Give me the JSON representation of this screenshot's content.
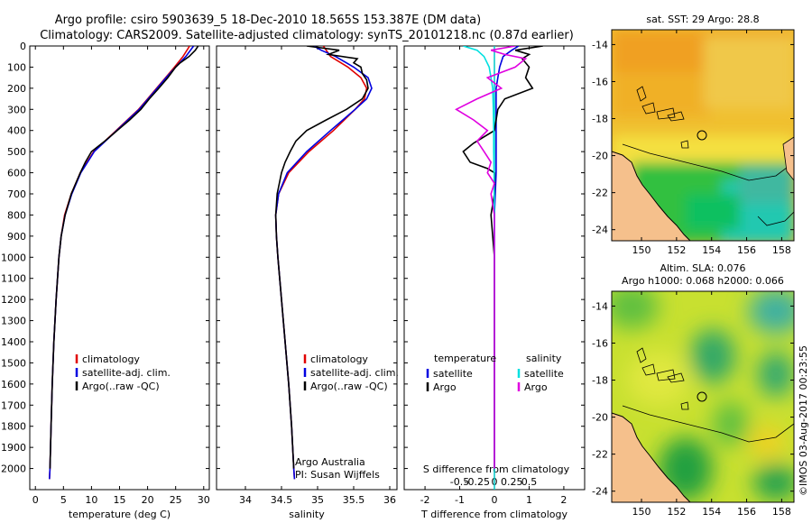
{
  "title": {
    "line1": "Argo profile: csiro 5903639_5 18-Dec-2010 18.565S 153.387E (DM data)",
    "line2": "Climatology: CARS2009. Satellite-adjusted climatology: synTS_20101218.nc (0.87d earlier)"
  },
  "colors": {
    "climatology": "#e00000",
    "satellite": "#0000e0",
    "argo": "#000000",
    "sal_satellite": "#00e0e0",
    "sal_argo": "#e000e0",
    "land": "#f5c08c"
  },
  "side_text": "©IMOS 03-Aug-2017 00:23:55",
  "chart_data": [
    {
      "type": "line",
      "name": "temperature-profile",
      "xlabel": "temperature (deg C)",
      "ylabel": "",
      "xlim": [
        -1,
        31
      ],
      "ylim": [
        2100,
        0
      ],
      "xticks": [
        0,
        5,
        10,
        15,
        20,
        25,
        30
      ],
      "yticks": [
        0,
        100,
        200,
        300,
        400,
        500,
        600,
        700,
        800,
        900,
        1000,
        1100,
        1200,
        1300,
        1400,
        1500,
        1600,
        1700,
        1800,
        1900,
        2000
      ],
      "legend": [
        "climatology",
        "satellite-adj. clim.",
        "Argo(..raw -QC)"
      ],
      "legend_position": "center-left",
      "series": [
        {
          "name": "climatology",
          "color": "#e00000",
          "depth": [
            0,
            50,
            100,
            150,
            200,
            250,
            300,
            400,
            500,
            600,
            700,
            800,
            900,
            1000,
            1200,
            1400,
            1600,
            1800,
            2000,
            2050
          ],
          "values": [
            27.5,
            26.3,
            24.8,
            23.2,
            21.6,
            20.0,
            18.4,
            14.4,
            10.4,
            8.0,
            6.4,
            5.2,
            4.6,
            4.2,
            3.7,
            3.3,
            3.0,
            2.8,
            2.6,
            2.5
          ]
        },
        {
          "name": "satellite-adj. clim.",
          "color": "#0000e0",
          "depth": [
            0,
            50,
            100,
            150,
            200,
            250,
            300,
            400,
            500,
            600,
            700,
            800,
            900,
            1000,
            1200,
            1400,
            1600,
            1800,
            2000,
            2050
          ],
          "values": [
            28.2,
            26.8,
            25.0,
            23.3,
            21.7,
            20.1,
            18.5,
            14.5,
            10.5,
            8.1,
            6.5,
            5.3,
            4.6,
            4.2,
            3.7,
            3.3,
            3.0,
            2.8,
            2.6,
            2.5
          ]
        },
        {
          "name": "Argo(..raw -QC)",
          "color": "#000000",
          "depth": [
            0,
            20,
            50,
            80,
            100,
            150,
            200,
            250,
            300,
            350,
            400,
            450,
            500,
            550,
            600,
            700,
            800,
            900,
            1000,
            1200,
            1400,
            1600,
            1800,
            2000
          ],
          "values": [
            29.0,
            28.5,
            27.4,
            25.8,
            25.0,
            23.6,
            22.0,
            20.3,
            18.8,
            16.8,
            14.6,
            12.4,
            10.0,
            8.9,
            8.0,
            6.4,
            5.3,
            4.6,
            4.2,
            3.7,
            3.3,
            3.0,
            2.8,
            2.6
          ]
        }
      ]
    },
    {
      "type": "line",
      "name": "salinity-profile",
      "xlabel": "salinity",
      "xlim": [
        33.6,
        36.1
      ],
      "ylim": [
        2100,
        0
      ],
      "xticks": [
        34,
        34.5,
        35,
        35.5,
        36
      ],
      "xticklabels": [
        "34",
        "34.5",
        "35",
        "35.5",
        "36"
      ],
      "legend": [
        "climatology",
        "satellite-adj. clim.",
        "Argo(..raw -QC)"
      ],
      "legend_position": "center-right",
      "annotation": [
        "Argo Australia",
        "PI: Susan Wijffels"
      ],
      "series": [
        {
          "name": "climatology",
          "color": "#e00000",
          "depth": [
            0,
            50,
            100,
            150,
            200,
            250,
            300,
            400,
            500,
            600,
            700,
            800,
            900,
            1000,
            1200,
            1400,
            1600,
            1800,
            2000,
            2050
          ],
          "values": [
            35.08,
            35.18,
            35.42,
            35.6,
            35.68,
            35.65,
            35.52,
            35.22,
            34.88,
            34.6,
            34.46,
            34.42,
            34.43,
            34.45,
            34.5,
            34.55,
            34.6,
            34.64,
            34.67,
            34.68
          ]
        },
        {
          "name": "satellite-adj. clim.",
          "color": "#0000e0",
          "depth": [
            0,
            20,
            50,
            100,
            150,
            200,
            250,
            300,
            400,
            500,
            600,
            700,
            800,
            900,
            1000,
            1200,
            1400,
            1600,
            1800,
            2000,
            2050
          ],
          "values": [
            34.95,
            35.05,
            35.25,
            35.5,
            35.7,
            35.75,
            35.68,
            35.52,
            35.18,
            34.85,
            34.58,
            34.46,
            34.42,
            34.43,
            34.45,
            34.5,
            34.55,
            34.6,
            34.64,
            34.67,
            34.68
          ]
        },
        {
          "name": "Argo(..raw -QC)",
          "color": "#000000",
          "depth": [
            0,
            20,
            40,
            60,
            80,
            100,
            130,
            160,
            200,
            250,
            300,
            350,
            400,
            450,
            500,
            550,
            600,
            700,
            800,
            900,
            1000,
            1200,
            1400,
            1600,
            1800,
            2000
          ],
          "values": [
            34.85,
            35.3,
            35.15,
            35.55,
            35.5,
            35.6,
            35.62,
            35.68,
            35.7,
            35.62,
            35.4,
            35.12,
            34.85,
            34.7,
            34.62,
            34.55,
            34.5,
            34.44,
            34.42,
            34.43,
            34.45,
            34.5,
            34.55,
            34.6,
            34.64,
            34.67
          ]
        }
      ]
    },
    {
      "type": "line",
      "name": "difference-profile",
      "xlabel": "T difference from climatology",
      "xlabel2": "S difference from climatology",
      "xlim": [
        -2.6,
        2.6
      ],
      "ylim": [
        2100,
        0
      ],
      "xticks": [
        -2,
        -1,
        0,
        1,
        2
      ],
      "xticklabels": [
        "-2",
        "-1",
        "0",
        "1",
        "2"
      ],
      "xticks2": [
        -1,
        -0.5,
        0,
        0.5,
        1
      ],
      "xticklabels2": [
        "-0.5",
        "-0.25",
        "0",
        "0.25",
        "0.5"
      ],
      "legend_temperature_title": "temperature",
      "legend_salinity_title": "salinity",
      "legend_temperature": [
        "satellite",
        "Argo"
      ],
      "legend_salinity": [
        "satellite",
        "Argo"
      ],
      "series": [
        {
          "name": "T satellite",
          "color": "#0000e0",
          "depth": [
            0,
            20,
            50,
            100,
            150,
            200,
            300,
            400,
            500,
            600,
            800,
            1000,
            1500,
            2000
          ],
          "values": [
            0.7,
            0.5,
            0.25,
            0.15,
            0.1,
            0.05,
            0.05,
            0.05,
            0.05,
            0.05,
            0.0,
            0.0,
            0.0,
            0.0
          ]
        },
        {
          "name": "T Argo",
          "color": "#000000",
          "depth": [
            0,
            20,
            40,
            60,
            100,
            150,
            200,
            250,
            300,
            400,
            460,
            500,
            550,
            580,
            600,
            700,
            800,
            1000,
            1500,
            2000
          ],
          "values": [
            1.4,
            0.6,
            1.0,
            0.8,
            1.0,
            0.9,
            1.1,
            0.3,
            0.1,
            0.0,
            -0.6,
            -0.9,
            -0.7,
            -0.2,
            0.0,
            0.0,
            -0.1,
            0.0,
            0.0,
            0.0
          ]
        },
        {
          "name": "S satellite",
          "color": "#00e0e0",
          "depth": [
            0,
            20,
            50,
            100,
            150,
            200,
            300,
            400,
            500,
            600,
            800,
            1000,
            1500,
            2000
          ],
          "values": [
            -0.9,
            -0.5,
            -0.3,
            -0.15,
            -0.1,
            -0.05,
            -0.03,
            -0.02,
            -0.02,
            -0.01,
            0.0,
            0.0,
            0.0,
            0.0
          ]
        },
        {
          "name": "S Argo",
          "color": "#e000e0",
          "depth": [
            0,
            20,
            40,
            60,
            100,
            150,
            200,
            250,
            300,
            350,
            400,
            450,
            500,
            550,
            600,
            650,
            700,
            800,
            1000,
            1500,
            2000
          ],
          "values": [
            0.6,
            -0.1,
            0.3,
            0.9,
            0.6,
            -0.2,
            0.2,
            -0.5,
            -1.1,
            -0.6,
            -0.2,
            -0.5,
            -0.3,
            -0.1,
            -0.2,
            0.0,
            -0.1,
            0.0,
            0.0,
            0.0,
            0.0
          ]
        }
      ]
    },
    {
      "type": "heatmap",
      "name": "sst-map",
      "title": "sat. SST: 29 Argo: 28.8",
      "xticks": [
        150,
        152,
        154,
        156,
        158
      ],
      "yticks": [
        -14,
        -16,
        -18,
        -20,
        -22,
        -24
      ],
      "xlim": [
        148.3,
        158.7
      ],
      "ylim": [
        -13.2,
        -24.6
      ],
      "marker": {
        "lon": 153.387,
        "lat": -18.565
      }
    },
    {
      "type": "heatmap",
      "name": "sla-map",
      "title": "Altim. SLA: 0.076",
      "title2": "Argo h1000: 0.068 h2000: 0.066",
      "xticks": [
        150,
        152,
        154,
        156,
        158
      ],
      "yticks": [
        -14,
        -16,
        -18,
        -20,
        -22,
        -24
      ],
      "xlim": [
        148.3,
        158.7
      ],
      "ylim": [
        -13.2,
        -24.6
      ],
      "marker": {
        "lon": 153.387,
        "lat": -18.565
      }
    }
  ]
}
